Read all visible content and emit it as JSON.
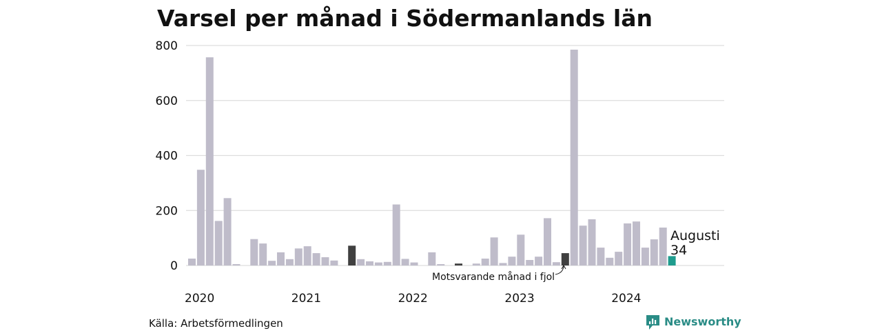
{
  "chart_data": {
    "type": "bar",
    "title": "Varsel per månad i Södermanlands län",
    "source": "Källa: Arbetsförmedlingen",
    "brand": "Newsworthy",
    "ylim": [
      0,
      800
    ],
    "yticks": [
      0,
      200,
      400,
      600,
      800
    ],
    "grid": true,
    "years": [
      "2020",
      "2021",
      "2022",
      "2023",
      "2024"
    ],
    "values": [
      25,
      348,
      757,
      162,
      245,
      5,
      0,
      96,
      80,
      17,
      48,
      23,
      62,
      70,
      45,
      30,
      18,
      0,
      72,
      23,
      15,
      11,
      13,
      222,
      24,
      11,
      0,
      48,
      5,
      0,
      7,
      0,
      7,
      25,
      102,
      9,
      32,
      112,
      20,
      32,
      172,
      12,
      45,
      785,
      145,
      168,
      65,
      28,
      50,
      153,
      160,
      65,
      95,
      138,
      34
    ],
    "colors": {
      "default": "#bfbcca",
      "highlight": "#404040",
      "latest": "#1f9c8e",
      "grid": "#dddddd",
      "brand": "#2a8c86"
    },
    "highlight_indices": [
      18,
      30,
      42
    ],
    "latest_index": 54,
    "latest_label": {
      "month": "Augusti",
      "value": "34"
    },
    "annotation": "Motsvarande månad i fjol"
  }
}
